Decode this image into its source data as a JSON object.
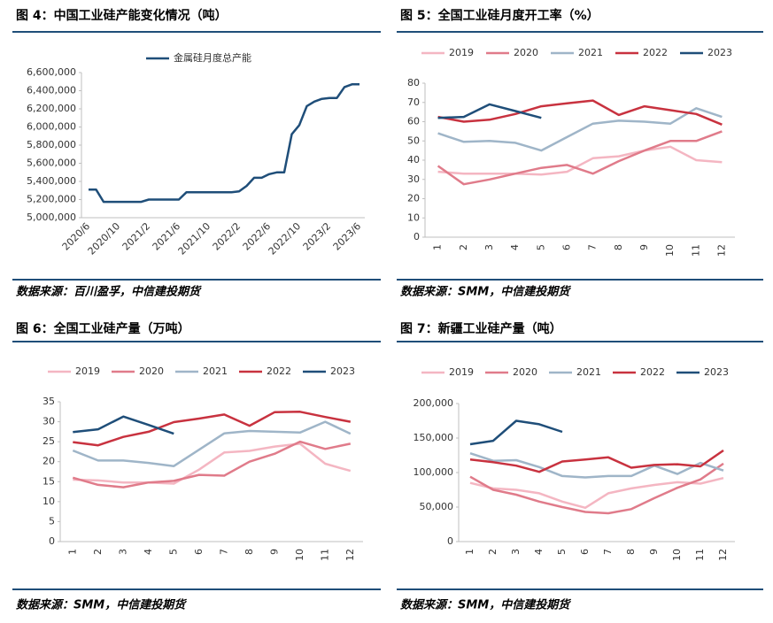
{
  "chart_data": [
    {
      "type": "line",
      "title": "图 4：中国工业硅产能变化情况（吨）",
      "source": "数据来源：百川盈孚，中信建投期货",
      "categories": [
        "2020/6",
        null,
        null,
        null,
        "2020/10",
        null,
        null,
        null,
        "2021/2",
        null,
        null,
        null,
        "2021/6",
        null,
        null,
        null,
        "2021/10",
        null,
        null,
        null,
        "2022/2",
        null,
        null,
        null,
        "2022/6",
        null,
        null,
        null,
        "2022/10",
        null,
        null,
        null,
        "2023/2",
        null,
        null,
        null,
        "2023/6"
      ],
      "series": [
        {
          "name": "金属硅月度总产能",
          "color": "#1f4e79",
          "values": [
            5310000,
            5310000,
            5175000,
            5175000,
            5175000,
            5175000,
            5175000,
            5175000,
            5200000,
            5200000,
            5200000,
            5200000,
            5200000,
            5280000,
            5280000,
            5280000,
            5280000,
            5280000,
            5280000,
            5280000,
            5290000,
            5350000,
            5440000,
            5440000,
            5480000,
            5500000,
            5500000,
            5920000,
            6020000,
            6230000,
            6280000,
            6310000,
            6320000,
            6320000,
            6440000,
            6470000,
            6470000
          ]
        }
      ],
      "ylim": [
        5000000,
        6600000
      ],
      "yticks": [
        {
          "value": 5000000,
          "label": "5,000,000"
        },
        {
          "value": 5200000,
          "label": "5,200,000"
        },
        {
          "value": 5400000,
          "label": "5,400,000"
        },
        {
          "value": 5600000,
          "label": "5,600,000"
        },
        {
          "value": 5800000,
          "label": "5,800,000"
        },
        {
          "value": 6000000,
          "label": "6,000,000"
        },
        {
          "value": 6200000,
          "label": "6,200,000"
        },
        {
          "value": 6400000,
          "label": "6,400,000"
        },
        {
          "value": 6600000,
          "label": "6,600,000"
        }
      ]
    },
    {
      "type": "line",
      "title": "图 5：全国工业硅月度开工率（%）",
      "source": "数据来源：SMM，中信建投期货",
      "categories": [
        "1",
        "2",
        "3",
        "4",
        "5",
        "6",
        "7",
        "8",
        "9",
        "10",
        "11",
        "12"
      ],
      "series": [
        {
          "name": "2019",
          "color": "#f4b6c2",
          "values": [
            34,
            33,
            33,
            33,
            32.5,
            34,
            41,
            42,
            45,
            47,
            40,
            39
          ]
        },
        {
          "name": "2020",
          "color": "#e07b8a",
          "values": [
            37,
            27.5,
            30,
            33,
            36,
            37.5,
            33,
            39.5,
            45,
            50,
            50,
            55
          ]
        },
        {
          "name": "2021",
          "color": "#9fb5c8",
          "values": [
            54,
            49.5,
            50,
            49,
            45,
            52,
            59,
            60.5,
            60,
            59,
            67,
            62.5
          ]
        },
        {
          "name": "2022",
          "color": "#c8323f",
          "values": [
            62.5,
            60,
            61,
            64,
            68,
            69.5,
            71,
            63.5,
            68,
            66,
            64,
            58.5
          ]
        },
        {
          "name": "2023",
          "color": "#1f4e79",
          "values": [
            62,
            62.5,
            69,
            65.5,
            62,
            null,
            null,
            null,
            null,
            null,
            null,
            null
          ]
        }
      ],
      "ylim": [
        0,
        80
      ],
      "yticks": [
        0,
        10,
        20,
        30,
        40,
        50,
        60,
        70,
        80
      ]
    },
    {
      "type": "line",
      "title": "图 6：全国工业硅产量（万吨）",
      "source": "数据来源：SMM，中信建投期货",
      "categories": [
        "1",
        "2",
        "3",
        "4",
        "5",
        "6",
        "7",
        "8",
        "9",
        "10",
        "11",
        "12"
      ],
      "series": [
        {
          "name": "2019",
          "color": "#f4b6c2",
          "values": [
            15.5,
            15.3,
            14.8,
            14.8,
            14.5,
            18,
            22.3,
            22.7,
            23.8,
            24.5,
            19.5,
            17.7
          ]
        },
        {
          "name": "2020",
          "color": "#e07b8a",
          "values": [
            16,
            14.2,
            13.6,
            14.8,
            15.2,
            16.7,
            16.5,
            20,
            22,
            25,
            23.2,
            24.5
          ]
        },
        {
          "name": "2021",
          "color": "#9fb5c8",
          "values": [
            22.8,
            20.3,
            20.3,
            19.7,
            18.9,
            23,
            27.1,
            27.7,
            27.5,
            27.3,
            30,
            27
          ]
        },
        {
          "name": "2022",
          "color": "#c8323f",
          "values": [
            24.9,
            24.1,
            26.2,
            27.5,
            29.9,
            30.8,
            31.8,
            29,
            32.4,
            32.5,
            31.2,
            30
          ]
        },
        {
          "name": "2023",
          "color": "#1f4e79",
          "values": [
            27.4,
            28.1,
            31.3,
            29.2,
            27,
            null,
            null,
            null,
            null,
            null,
            null,
            null
          ]
        }
      ],
      "ylim": [
        0,
        35
      ],
      "yticks": [
        0,
        5,
        10,
        15,
        20,
        25,
        30,
        35
      ]
    },
    {
      "type": "line",
      "title": "图 7：新疆工业硅产量（吨）",
      "source": "数据来源：SMM，中信建投期货",
      "categories": [
        "1",
        "2",
        "3",
        "4",
        "5",
        "6",
        "7",
        "8",
        "9",
        "10",
        "11",
        "12"
      ],
      "series": [
        {
          "name": "2019",
          "color": "#f4b6c2",
          "values": [
            85000,
            77000,
            75000,
            70000,
            58000,
            49000,
            70000,
            77000,
            82000,
            86000,
            84000,
            92000
          ]
        },
        {
          "name": "2020",
          "color": "#e07b8a",
          "values": [
            94000,
            75000,
            68000,
            58000,
            50000,
            43000,
            41000,
            47000,
            63000,
            78000,
            90000,
            113000
          ]
        },
        {
          "name": "2021",
          "color": "#9fb5c8",
          "values": [
            128000,
            117000,
            118000,
            108000,
            95000,
            93000,
            95000,
            95000,
            110000,
            98000,
            114000,
            103000
          ]
        },
        {
          "name": "2022",
          "color": "#c8323f",
          "values": [
            119000,
            115000,
            110000,
            101000,
            116000,
            119000,
            122000,
            107000,
            111000,
            112000,
            109000,
            132000
          ]
        },
        {
          "name": "2023",
          "color": "#1f4e79",
          "values": [
            141000,
            146000,
            175000,
            170000,
            159000,
            null,
            null,
            null,
            null,
            null,
            null,
            null
          ]
        }
      ],
      "ylim": [
        0,
        200000
      ],
      "yticks": [
        0,
        {
          "value": 50000,
          "label": "50,000"
        },
        {
          "value": 100000,
          "label": "100,000"
        },
        {
          "value": 150000,
          "label": "150,000"
        },
        {
          "value": 200000,
          "label": "200,000"
        }
      ]
    }
  ]
}
